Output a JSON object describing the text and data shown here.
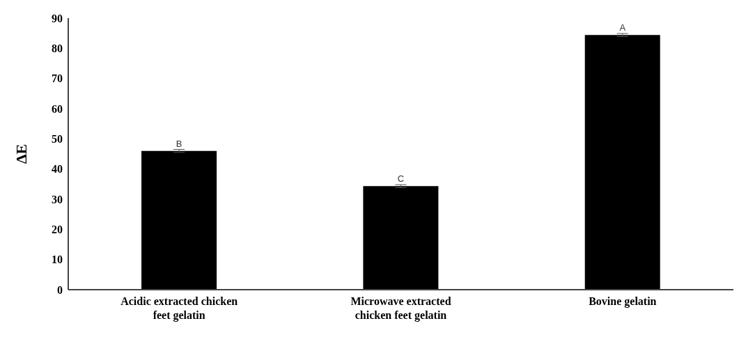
{
  "chart_data": {
    "type": "bar",
    "ylabel": "ΔE",
    "categories": [
      "Acidic extracted chicken feet gelatin",
      "Microwave extracted chicken feet gelatin",
      "Bovine gelatin"
    ],
    "values": [
      46,
      34.3,
      84.4
    ],
    "errors": [
      0.5,
      0.5,
      0.5
    ],
    "color": "#000000",
    "ylim": [
      0,
      90
    ],
    "yticks": [
      0,
      10,
      20,
      30,
      40,
      50,
      60,
      70,
      80,
      90
    ],
    "annotations": [
      {
        "text": "B",
        "x": "Acidic extracted chicken feet gelatin",
        "y": 46
      },
      {
        "text": "C",
        "x": "Microwave extracted chicken feet gelatin",
        "y": 34.3
      },
      {
        "text": "A",
        "x": "Bovine gelatin",
        "y": 84.4
      }
    ]
  }
}
